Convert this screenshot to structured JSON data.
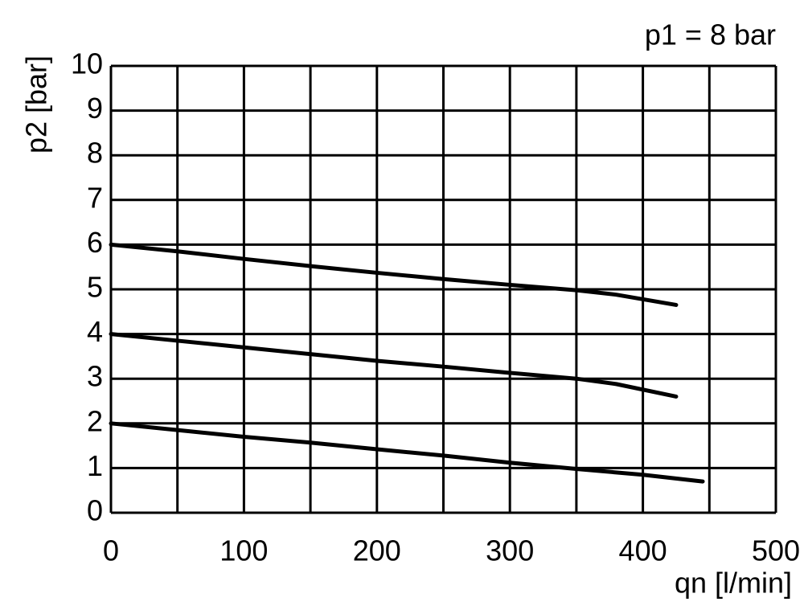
{
  "chart_data": {
    "type": "line",
    "annotation": "p1 = 8 bar",
    "y_label": "p2 [bar]",
    "x_label": "qn [l/min]",
    "xlim": [
      0,
      500
    ],
    "xticks": [
      0,
      100,
      200,
      300,
      400,
      500
    ],
    "xminorticks": [
      50,
      150,
      250,
      350,
      450
    ],
    "ylim": [
      0,
      10
    ],
    "yticks": [
      0,
      1,
      2,
      3,
      4,
      5,
      6,
      7,
      8,
      9,
      10
    ],
    "grid": true,
    "series": [
      {
        "color": "#000000",
        "x": [
          0,
          50,
          100,
          150,
          200,
          250,
          300,
          350,
          380,
          425
        ],
        "values": [
          6.0,
          5.85,
          5.68,
          5.52,
          5.37,
          5.23,
          5.1,
          4.98,
          4.88,
          4.65
        ]
      },
      {
        "color": "#000000",
        "x": [
          0,
          50,
          100,
          150,
          200,
          250,
          300,
          350,
          380,
          425
        ],
        "values": [
          4.0,
          3.85,
          3.7,
          3.55,
          3.4,
          3.27,
          3.13,
          3.0,
          2.88,
          2.6
        ]
      },
      {
        "color": "#000000",
        "x": [
          0,
          50,
          100,
          150,
          200,
          250,
          300,
          350,
          400,
          445
        ],
        "values": [
          2.0,
          1.85,
          1.7,
          1.57,
          1.42,
          1.28,
          1.12,
          0.98,
          0.85,
          0.7
        ]
      }
    ]
  }
}
